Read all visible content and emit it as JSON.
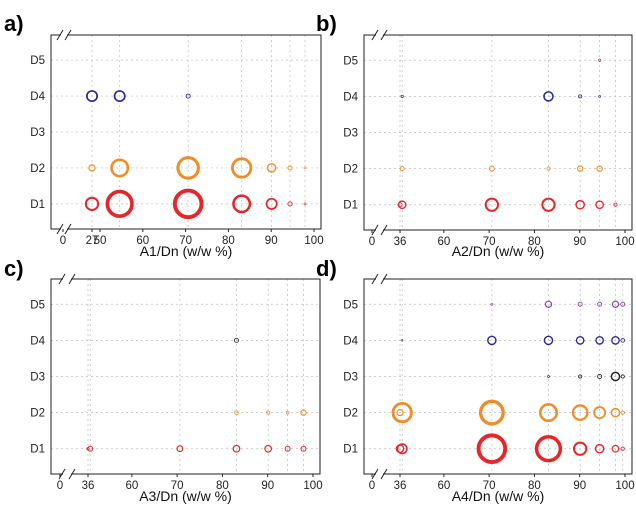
{
  "chart_data": [
    {
      "type": "scatter",
      "panel_label": "a)",
      "xlabel": "A1/Dn (w/w %)",
      "ylabel": "",
      "y_categories": [
        "D1",
        "D2",
        "D3",
        "D4",
        "D5"
      ],
      "x_tick_labels": [
        "0",
        "27",
        "50",
        "60",
        "70",
        "80",
        "90",
        "100"
      ],
      "x_ticks": [
        0,
        27,
        50,
        60,
        70,
        80,
        90,
        100
      ],
      "axis_break": [
        27,
        50
      ],
      "xlim_left": [
        0,
        27
      ],
      "xlim_right": [
        50,
        100
      ],
      "grid": true,
      "grid_x": [
        27,
        54.6,
        70.6,
        83.1,
        90.1,
        94.4,
        97.9
      ],
      "colors": {
        "D1": "#e8262a",
        "D2": "#f28c28",
        "D3": "#333333",
        "D4": "#2e2b8f",
        "D5": "#333333"
      },
      "series": [
        {
          "y": "D1",
          "points": [
            {
              "x": 27,
              "size": 3
            },
            {
              "x": 54.6,
              "size": 6
            },
            {
              "x": 70.6,
              "size": 6.5
            },
            {
              "x": 83.1,
              "size": 4
            },
            {
              "x": 90.1,
              "size": 2.5
            },
            {
              "x": 94.4,
              "size": 1
            },
            {
              "x": 97.9,
              "size": 0.5
            }
          ]
        },
        {
          "y": "D2",
          "points": [
            {
              "x": 27,
              "size": 1.5
            },
            {
              "x": 54.6,
              "size": 4
            },
            {
              "x": 70.6,
              "size": 5
            },
            {
              "x": 83.1,
              "size": 4.5
            },
            {
              "x": 90.1,
              "size": 2
            },
            {
              "x": 94.4,
              "size": 1
            },
            {
              "x": 97.9,
              "size": 0.5
            }
          ]
        },
        {
          "y": "D4",
          "points": [
            {
              "x": 27,
              "size": 2.5
            },
            {
              "x": 54.6,
              "size": 2.5
            },
            {
              "x": 70.6,
              "size": 1
            }
          ]
        }
      ]
    },
    {
      "type": "scatter",
      "panel_label": "b)",
      "xlabel": "A2/Dn (w/w %)",
      "ylabel": "",
      "y_categories": [
        "D1",
        "D2",
        "D3",
        "D4",
        "D5"
      ],
      "x_tick_labels": [
        "0",
        "36",
        "60",
        "70",
        "80",
        "90",
        "100"
      ],
      "x_ticks": [
        0,
        36,
        60,
        70,
        80,
        90,
        100
      ],
      "axis_break": [
        36,
        47
      ],
      "xlim_left": [
        0,
        36
      ],
      "xlim_right": [
        47,
        100
      ],
      "grid": true,
      "grid_x": [
        36,
        50.8,
        70.6,
        83.1,
        90.1,
        94.4,
        97.9
      ],
      "colors": {
        "D1": "#e8262a",
        "D2": "#f28c28",
        "D3": "#333333",
        "D4": "#2e2b8f",
        "D5": "#c0392b"
      },
      "series": [
        {
          "y": "D1",
          "points": [
            {
              "x": 36,
              "size": 1
            },
            {
              "x": 50.8,
              "size": 1.8
            },
            {
              "x": 70.6,
              "size": 3
            },
            {
              "x": 83.1,
              "size": 3
            },
            {
              "x": 90.1,
              "size": 2
            },
            {
              "x": 94.4,
              "size": 1.8
            },
            {
              "x": 97.9,
              "size": 0.8
            }
          ]
        },
        {
          "y": "D2",
          "points": [
            {
              "x": 50.8,
              "size": 1
            },
            {
              "x": 70.6,
              "size": 1.2
            },
            {
              "x": 83.1,
              "size": 0.8
            },
            {
              "x": 90.1,
              "size": 1.3
            },
            {
              "x": 94.4,
              "size": 1.3
            }
          ]
        },
        {
          "y": "D4",
          "points": [
            {
              "x": 50.8,
              "size": 0.6
            },
            {
              "x": 83.1,
              "size": 2.2
            },
            {
              "x": 90.1,
              "size": 0.8
            },
            {
              "x": 94.4,
              "size": 0.5
            }
          ]
        },
        {
          "y": "D5",
          "points": [
            {
              "x": 94.4,
              "size": 0.6
            }
          ]
        }
      ]
    },
    {
      "type": "scatter",
      "panel_label": "c)",
      "xlabel": "A3/Dn (w/w %)",
      "ylabel": "",
      "y_categories": [
        "D1",
        "D2",
        "D3",
        "D4",
        "D5"
      ],
      "x_tick_labels": [
        "0",
        "36",
        "60",
        "70",
        "80",
        "90",
        "100"
      ],
      "x_ticks": [
        0,
        36,
        60,
        70,
        80,
        90,
        100
      ],
      "axis_break": [
        36,
        47
      ],
      "xlim_left": [
        0,
        36
      ],
      "xlim_right": [
        47,
        100
      ],
      "grid": true,
      "grid_x": [
        36,
        50.8,
        70.6,
        83.1,
        90.1,
        94.4,
        97.9
      ],
      "colors": {
        "D1": "#e8262a",
        "D2": "#f28c28",
        "D3": "#333333",
        "D4": "#333333",
        "D5": "#333333"
      },
      "series": [
        {
          "y": "D1",
          "points": [
            {
              "x": 36,
              "size": 0.6
            },
            {
              "x": 50.8,
              "size": 1.2
            },
            {
              "x": 70.6,
              "size": 1.4
            },
            {
              "x": 83.1,
              "size": 1.6
            },
            {
              "x": 90.1,
              "size": 1.6
            },
            {
              "x": 94.4,
              "size": 1.2
            },
            {
              "x": 97.9,
              "size": 1.2
            }
          ]
        },
        {
          "y": "D2",
          "points": [
            {
              "x": 83.1,
              "size": 0.9
            },
            {
              "x": 90.1,
              "size": 0.8
            },
            {
              "x": 94.4,
              "size": 0.7
            },
            {
              "x": 97.9,
              "size": 1.3
            }
          ]
        },
        {
          "y": "D4",
          "points": [
            {
              "x": 83.1,
              "size": 1
            }
          ]
        }
      ]
    },
    {
      "type": "scatter",
      "panel_label": "d)",
      "xlabel": "A4/Dn (w/w %)",
      "ylabel": "",
      "y_categories": [
        "D1",
        "D2",
        "D3",
        "D4",
        "D5"
      ],
      "x_tick_labels": [
        "0",
        "36",
        "60",
        "70",
        "80",
        "90",
        "100"
      ],
      "x_ticks": [
        0,
        36,
        60,
        70,
        80,
        90,
        100
      ],
      "axis_break": [
        36,
        47
      ],
      "xlim_left": [
        0,
        36
      ],
      "xlim_right": [
        47,
        100
      ],
      "grid": true,
      "grid_x": [
        36,
        50.8,
        70.6,
        83.1,
        90.1,
        94.4,
        97.9,
        99.5
      ],
      "colors": {
        "D1": "#e8262a",
        "D2": "#f28c28",
        "D3": "#222222",
        "D4": "#2e2b8f",
        "D5": "#8e3aa8"
      },
      "series": [
        {
          "y": "D1",
          "points": [
            {
              "x": 36,
              "size": 1.8
            },
            {
              "x": 50.8,
              "size": 2.3
            },
            {
              "x": 70.6,
              "size": 6.5
            },
            {
              "x": 83.1,
              "size": 5.8
            },
            {
              "x": 90.1,
              "size": 3
            },
            {
              "x": 94.4,
              "size": 2
            },
            {
              "x": 97.9,
              "size": 1.6
            },
            {
              "x": 99.5,
              "size": 0.8
            }
          ]
        },
        {
          "y": "D2",
          "points": [
            {
              "x": 36,
              "size": 1.5
            },
            {
              "x": 50.8,
              "size": 4.5
            },
            {
              "x": 70.6,
              "size": 5.5
            },
            {
              "x": 83.1,
              "size": 4
            },
            {
              "x": 90.1,
              "size": 3.5
            },
            {
              "x": 94.4,
              "size": 2.7
            },
            {
              "x": 97.9,
              "size": 2
            },
            {
              "x": 99.5,
              "size": 0.8
            }
          ]
        },
        {
          "y": "D3",
          "points": [
            {
              "x": 83.1,
              "size": 0.5
            },
            {
              "x": 90.1,
              "size": 0.8
            },
            {
              "x": 94.4,
              "size": 1
            },
            {
              "x": 97.9,
              "size": 2
            },
            {
              "x": 99.5,
              "size": 0.8
            }
          ]
        },
        {
          "y": "D4",
          "points": [
            {
              "x": 50.8,
              "size": 0.4
            },
            {
              "x": 70.6,
              "size": 2
            },
            {
              "x": 83.1,
              "size": 2
            },
            {
              "x": 90.1,
              "size": 1.8
            },
            {
              "x": 94.4,
              "size": 1.8
            },
            {
              "x": 97.9,
              "size": 1.8
            },
            {
              "x": 99.5,
              "size": 0.9
            }
          ]
        },
        {
          "y": "D5",
          "points": [
            {
              "x": 70.6,
              "size": 0.5
            },
            {
              "x": 83.1,
              "size": 1.5
            },
            {
              "x": 90.1,
              "size": 1
            },
            {
              "x": 94.4,
              "size": 1
            },
            {
              "x": 97.9,
              "size": 1.5
            },
            {
              "x": 99.5,
              "size": 1
            }
          ]
        }
      ]
    }
  ]
}
